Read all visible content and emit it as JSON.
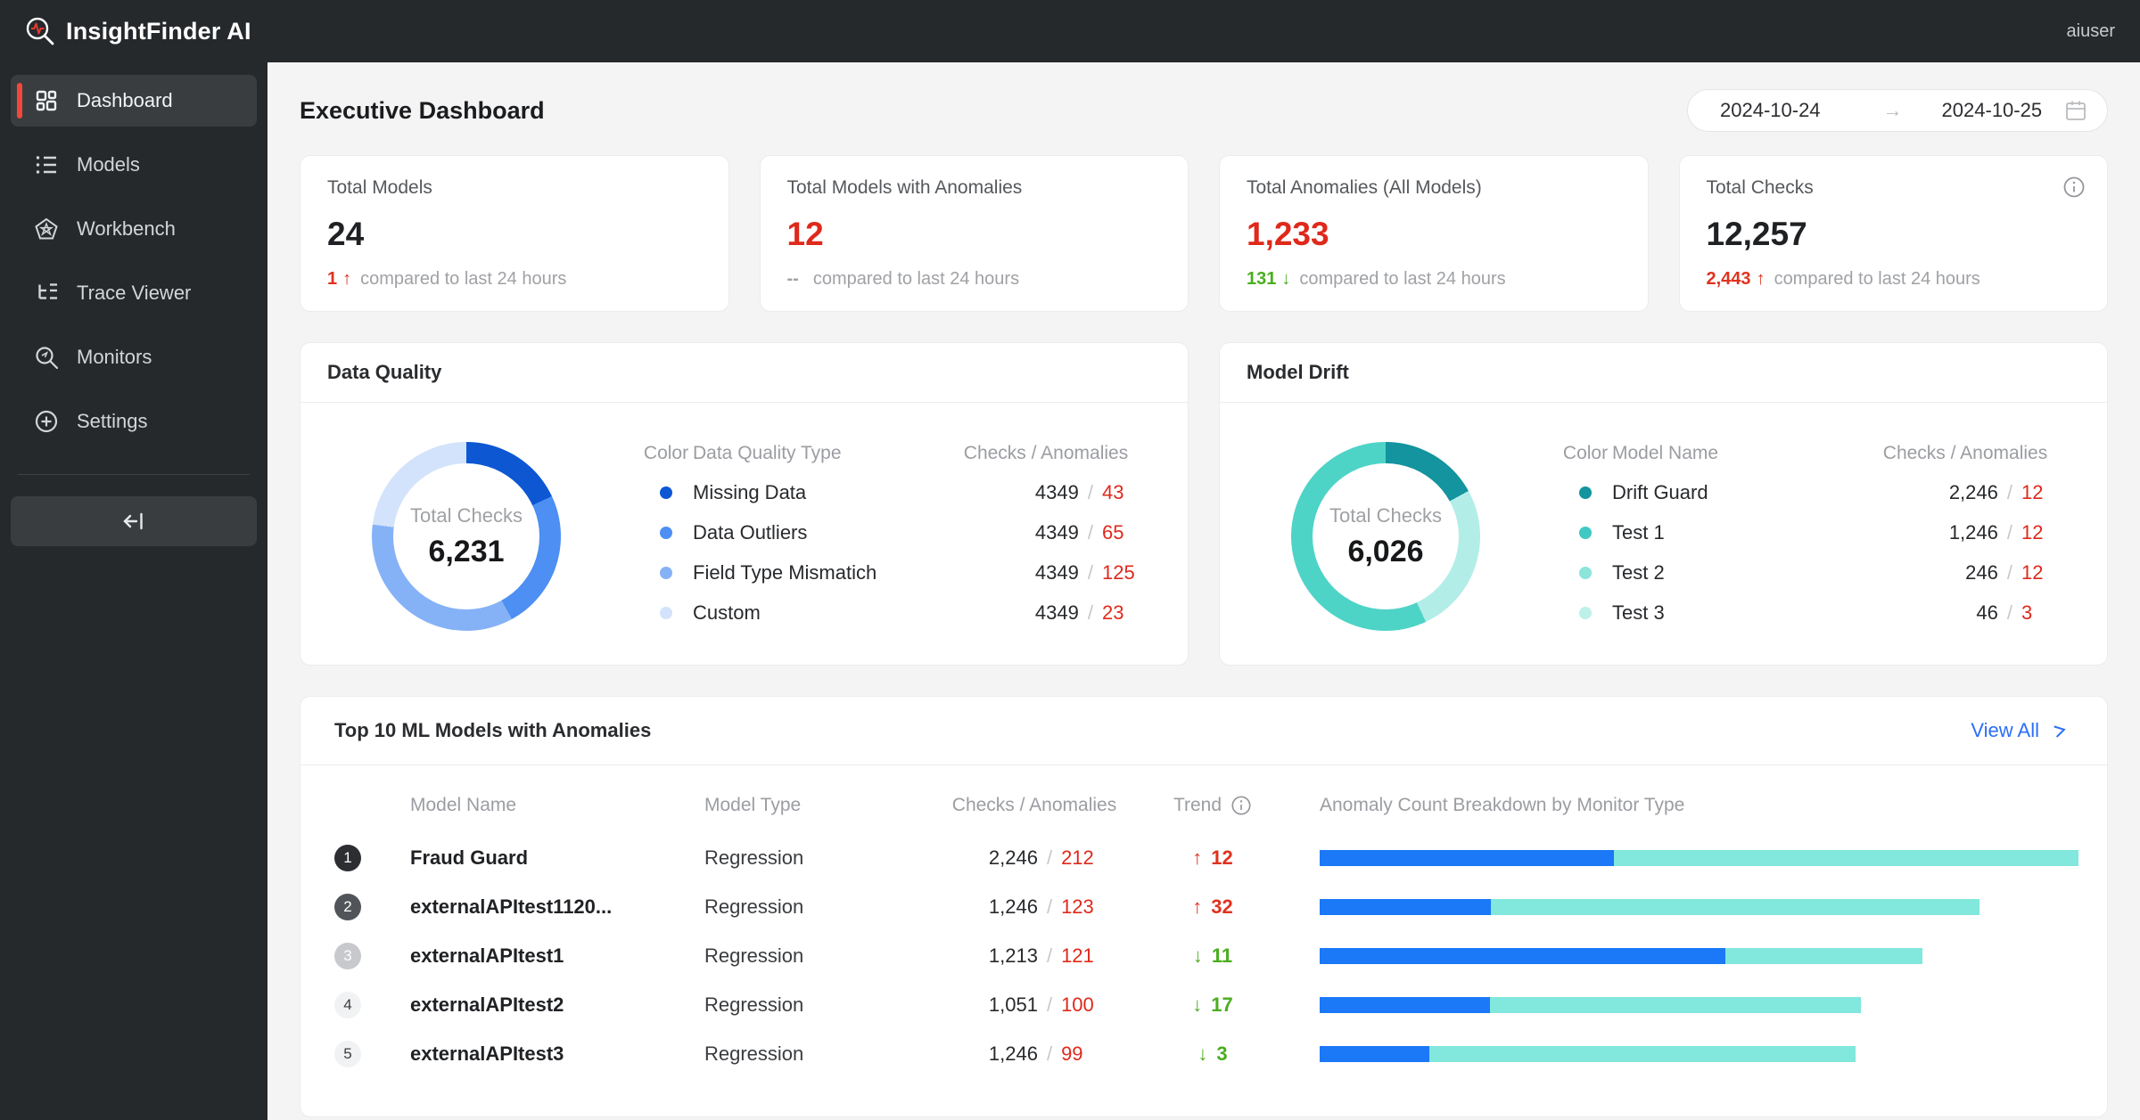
{
  "topbar": {
    "brand": "InsightFinder AI",
    "user": "aiuser"
  },
  "sidebar": {
    "items": [
      {
        "label": "Dashboard"
      },
      {
        "label": "Models"
      },
      {
        "label": "Workbench"
      },
      {
        "label": "Trace Viewer"
      },
      {
        "label": "Monitors"
      },
      {
        "label": "Settings"
      }
    ]
  },
  "page": {
    "title": "Executive Dashboard"
  },
  "date_range": {
    "start": "2024-10-24",
    "arrow": "→",
    "end": "2024-10-25"
  },
  "stat_cards": [
    {
      "title": "Total Models",
      "value": "24",
      "value_color": "#1f2124",
      "delta_value": "1",
      "delta_arrow": "↑",
      "delta_color": "#e0321f",
      "suffix": "compared to last 24 hours"
    },
    {
      "title": "Total Models with Anomalies",
      "value": "12",
      "value_color": "#df291b",
      "delta_value": "--",
      "delta_arrow": "",
      "delta_color": "#9fa1a5",
      "suffix": "compared to last 24 hours"
    },
    {
      "title": "Total Anomalies (All Models)",
      "value": "1,233",
      "value_color": "#df291b",
      "delta_value": "131",
      "delta_arrow": "↓",
      "delta_color": "#4bae20",
      "suffix": "compared to last 24 hours"
    },
    {
      "title": "Total Checks",
      "value": "12,257",
      "value_color": "#1f2124",
      "delta_value": "2,443",
      "delta_arrow": "↑",
      "delta_color": "#e0321f",
      "suffix": "compared to last 24 hours"
    }
  ],
  "data_quality": {
    "title": "Data Quality",
    "donut": {
      "center_label": "Total Checks",
      "center_value": "6,231",
      "segments": [
        {
          "color": "#0d57d3",
          "pct": 18
        },
        {
          "color": "#4d8ff2",
          "pct": 24
        },
        {
          "color": "#85b2f6",
          "pct": 35
        },
        {
          "color": "#d3e3fb",
          "pct": 23
        }
      ]
    },
    "headers": {
      "color": "Color",
      "type": "Data Quality Type",
      "nums": "Checks / Anomalies"
    },
    "rows": [
      {
        "color": "#0d57d3",
        "label": "Missing Data",
        "checks": "4349",
        "slash": "/",
        "anomalies": "43"
      },
      {
        "color": "#4d8ff2",
        "label": "Data Outliers",
        "checks": "4349",
        "slash": "/",
        "anomalies": "65"
      },
      {
        "color": "#85b2f6",
        "label": "Field Type Mismatich",
        "checks": "4349",
        "slash": "/",
        "anomalies": "125"
      },
      {
        "color": "#d3e3fb",
        "label": "Custom",
        "checks": "4349",
        "slash": "/",
        "anomalies": "23"
      }
    ]
  },
  "model_drift": {
    "title": "Model Drift",
    "donut": {
      "center_label": "Total Checks",
      "center_value": "6,026",
      "segments": [
        {
          "color": "#13949e",
          "pct": 17
        },
        {
          "color": "#b2eee7",
          "pct": 26
        },
        {
          "color": "#4ed3c7",
          "pct": 57
        }
      ]
    },
    "headers": {
      "color": "Color",
      "type": "Model Name",
      "nums": "Checks / Anomalies"
    },
    "rows": [
      {
        "color": "#13949e",
        "label": "Drift Guard",
        "checks": "2,246",
        "slash": "/",
        "anomalies": "12"
      },
      {
        "color": "#3fc8c4",
        "label": "Test 1",
        "checks": "1,246",
        "slash": "/",
        "anomalies": "12"
      },
      {
        "color": "#8ce4da",
        "label": "Test 2",
        "checks": "246",
        "slash": "/",
        "anomalies": "12"
      },
      {
        "color": "#bdf0e9",
        "label": "Test 3",
        "checks": "46",
        "slash": "/",
        "anomalies": "3"
      }
    ]
  },
  "table": {
    "title": "Top 10 ML Models with Anomalies",
    "view_all": "View All",
    "headers": {
      "name": "Model Name",
      "type": "Model Type",
      "nums": "Checks / Anomalies",
      "trend": "Trend",
      "breakdown": "Anomaly Count Breakdown by Monitor Type"
    },
    "bar_colors": {
      "blue": "#1b79f7",
      "teal": "#82e7dc"
    },
    "rows": [
      {
        "rank": "1",
        "rank_bg": "#2c2e31",
        "rank_fg": "#ffffff",
        "name": "Fraud Guard",
        "type": "Regression",
        "checks": "2,246",
        "slash": "/",
        "anomalies": "212",
        "trend_arrow": "↑",
        "trend_value": "12",
        "trend_color": "#e0321f",
        "bar": {
          "blue": 38.8,
          "teal": 61.2
        }
      },
      {
        "rank": "2",
        "rank_bg": "#515458",
        "rank_fg": "#ffffff",
        "name": "externalAPItest1120...",
        "type": "Regression",
        "checks": "1,246",
        "slash": "/",
        "anomalies": "123",
        "trend_arrow": "↑",
        "trend_value": "32",
        "trend_color": "#e0321f",
        "bar": {
          "blue": 22.6,
          "teal": 64.4
        }
      },
      {
        "rank": "3",
        "rank_bg": "#c7c9cc",
        "rank_fg": "#ffffff",
        "name": "externalAPItest1",
        "type": "Regression",
        "checks": "1,213",
        "slash": "/",
        "anomalies": "121",
        "trend_arrow": "↓",
        "trend_value": "11",
        "trend_color": "#4bae20",
        "bar": {
          "blue": 53.5,
          "teal": 25.9
        }
      },
      {
        "rank": "4",
        "rank_bg": "#f1f2f3",
        "rank_fg": "#3a3c3f",
        "name": "externalAPItest2",
        "type": "Regression",
        "checks": "1,051",
        "slash": "/",
        "anomalies": "100",
        "trend_arrow": "↓",
        "trend_value": "17",
        "trend_color": "#4bae20",
        "bar": {
          "blue": 22.5,
          "teal": 48.8
        }
      },
      {
        "rank": "5",
        "rank_bg": "#f1f2f3",
        "rank_fg": "#3a3c3f",
        "name": "externalAPItest3",
        "type": "Regression",
        "checks": "1,246",
        "slash": "/",
        "anomalies": "99",
        "trend_arrow": "↓",
        "trend_value": "3",
        "trend_color": "#4bae20",
        "bar": {
          "blue": 14.4,
          "teal": 56.2
        }
      }
    ]
  }
}
